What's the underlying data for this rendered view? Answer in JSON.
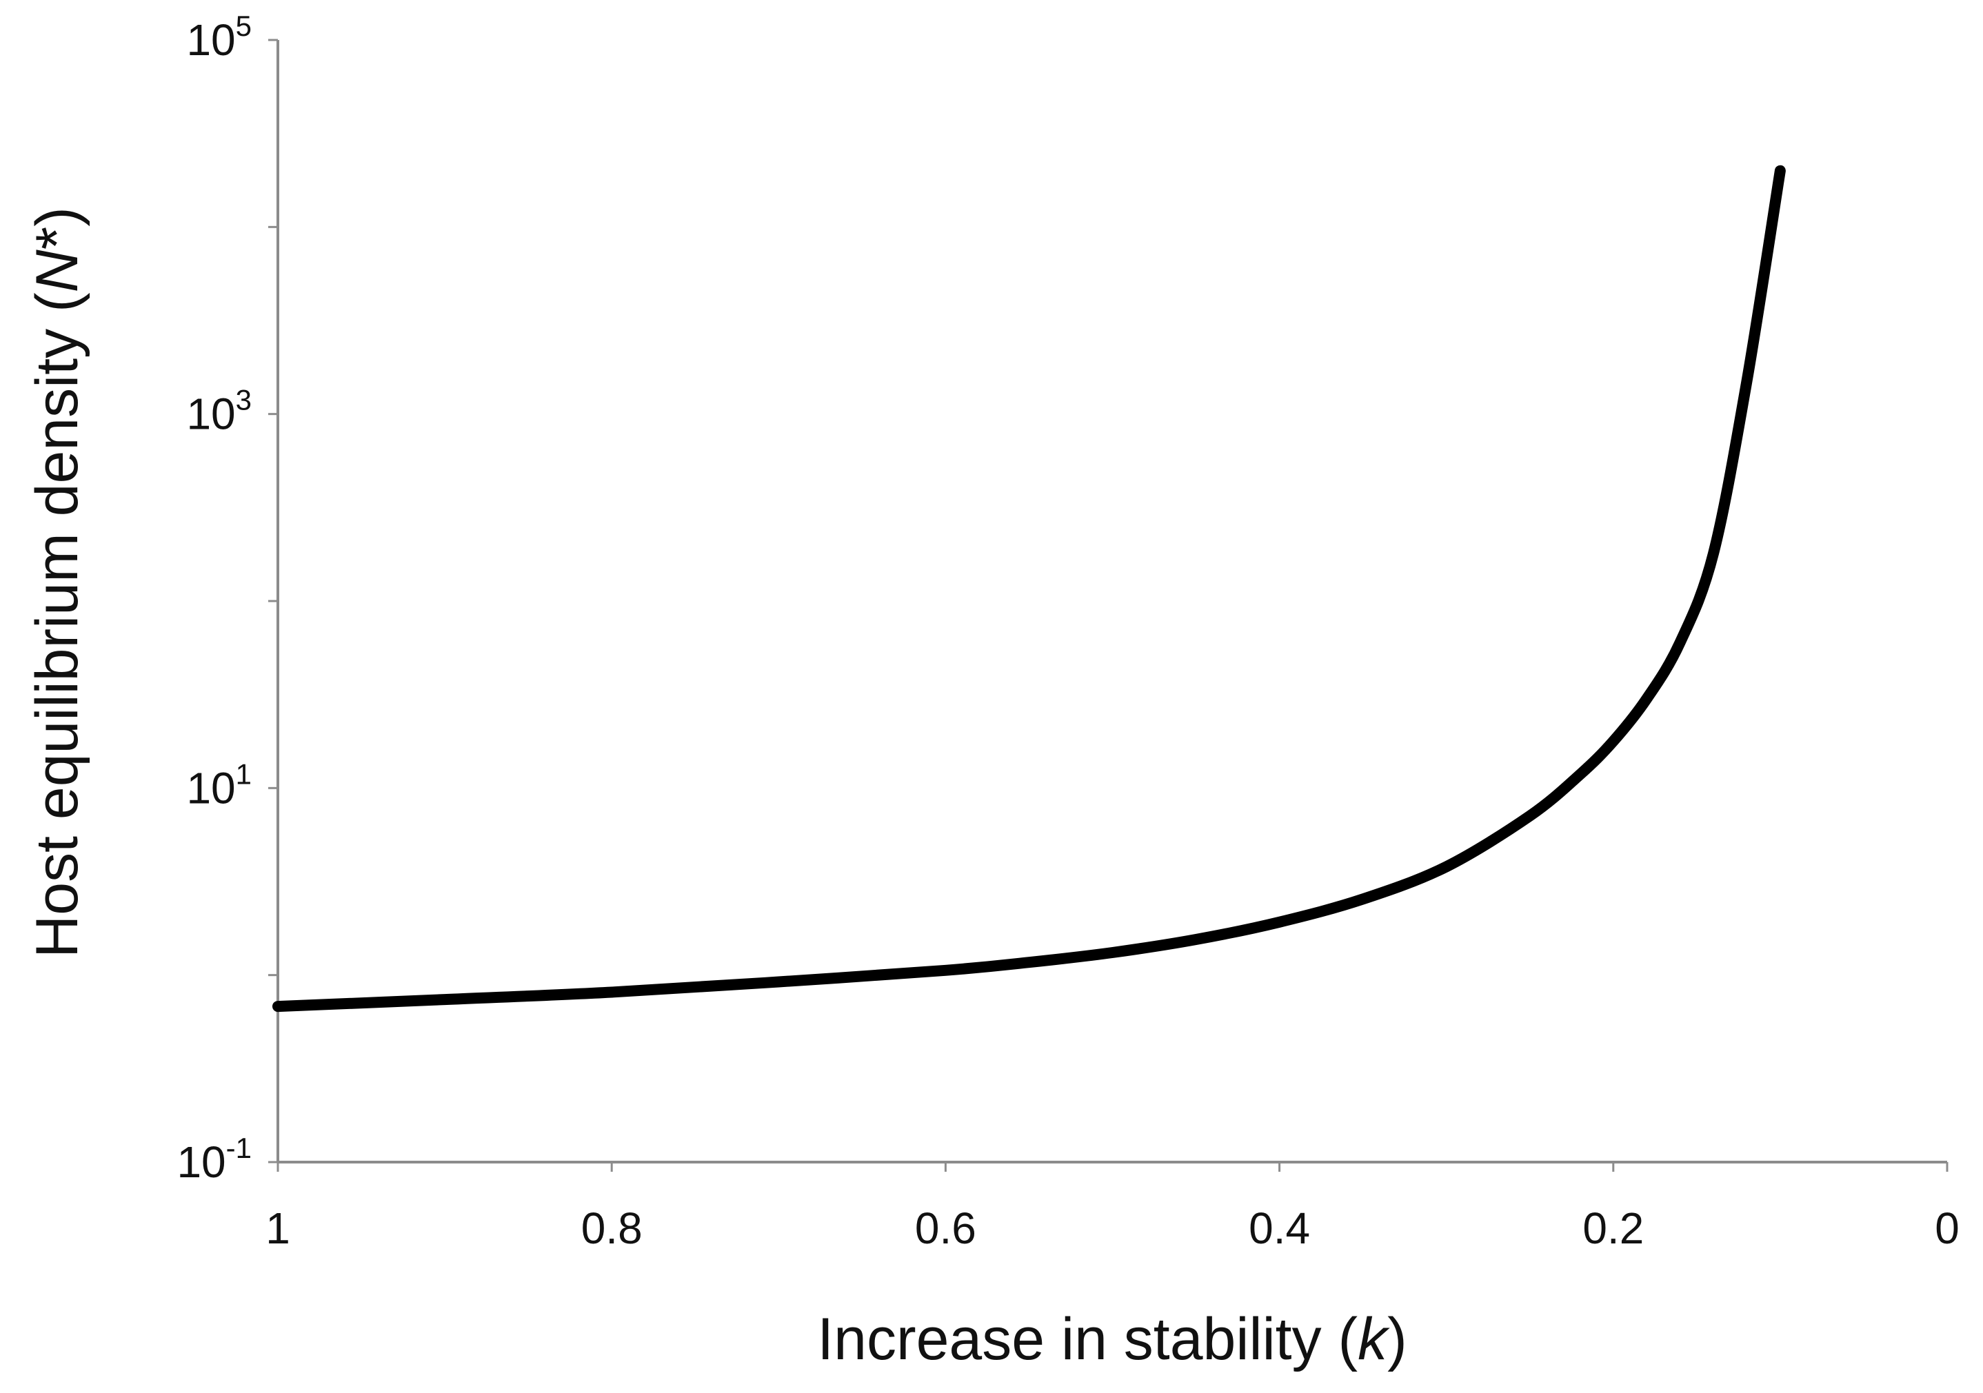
{
  "chart_data": {
    "type": "line",
    "title": "",
    "xlabel": "Increase in stability (",
    "xlabel_var": "k",
    "xlabel_close": ")",
    "ylabel": "Host equilibrium density (",
    "ylabel_var": "N",
    "ylabel_close": "*)",
    "x_reversed": true,
    "xlim": [
      0,
      1
    ],
    "ylim_log10": [
      -1,
      5
    ],
    "y_scale": "log",
    "grid": false,
    "x_ticks": [
      {
        "value": 1,
        "label": "1"
      },
      {
        "value": 0.8,
        "label": "0.8"
      },
      {
        "value": 0.6,
        "label": "0.6"
      },
      {
        "value": 0.4,
        "label": "0.4"
      },
      {
        "value": 0.2,
        "label": "0.2"
      },
      {
        "value": 0,
        "label": "0"
      }
    ],
    "y_ticks": [
      {
        "exp": -1,
        "base": "10",
        "sup": "-1"
      },
      {
        "exp": 3,
        "base": "10",
        "sup": "3"
      },
      {
        "exp": 1,
        "base": "10",
        "sup": "1"
      },
      {
        "exp": 5,
        "base": "10",
        "sup": "5"
      }
    ],
    "y_minor_exps": [
      0,
      2,
      4
    ],
    "series": [
      {
        "name": "N*",
        "color": "#000000",
        "x": [
          1.0,
          0.9,
          0.8,
          0.7,
          0.6,
          0.55,
          0.5,
          0.45,
          0.4,
          0.35,
          0.3,
          0.25,
          0.22,
          0.2,
          0.18,
          0.16,
          0.14,
          0.12,
          0.1
        ],
        "y": [
          0.68,
          0.74,
          0.81,
          0.92,
          1.06,
          1.17,
          1.32,
          1.55,
          1.92,
          2.55,
          3.8,
          7.1,
          11.8,
          17.8,
          30,
          60,
          180,
          1500,
          20000
        ]
      }
    ]
  }
}
